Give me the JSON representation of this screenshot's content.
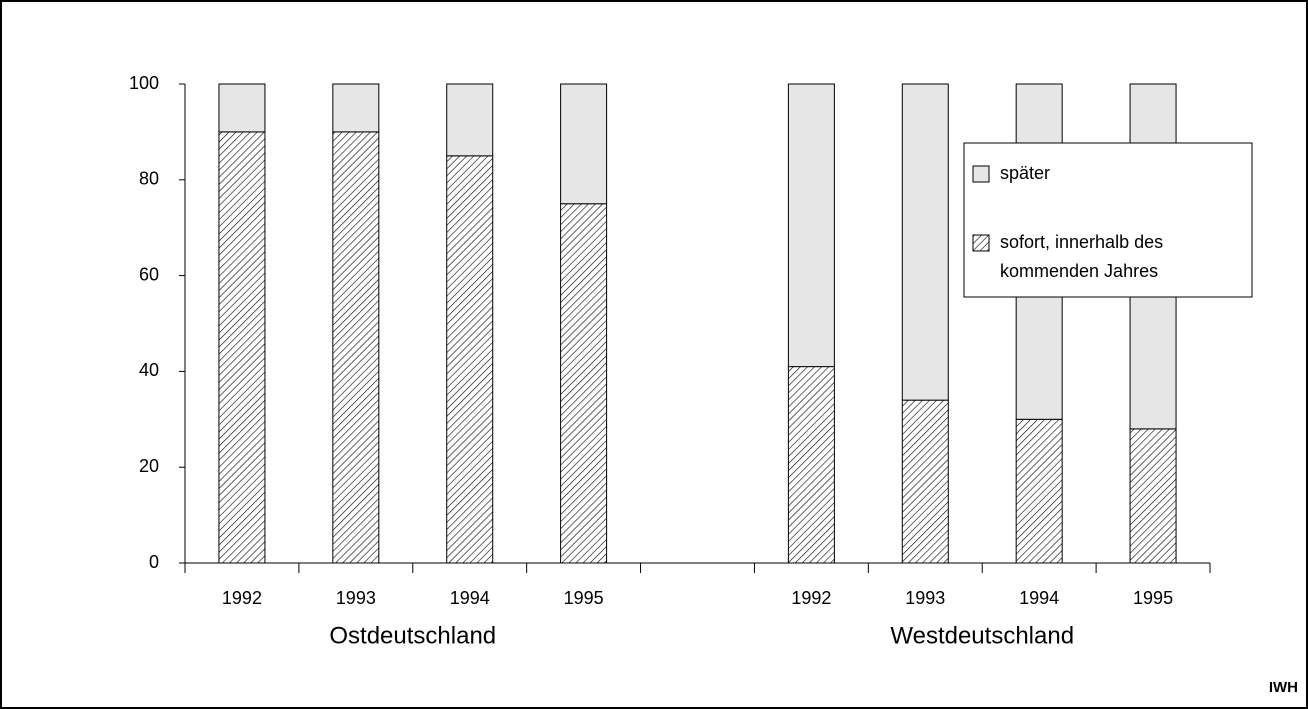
{
  "chart_data": {
    "type": "stacked-bar",
    "categories": [
      "1992",
      "1993",
      "1994",
      "1995",
      null,
      "1992",
      "1993",
      "1994",
      "1995"
    ],
    "group_labels": [
      "Ostdeutschland",
      "Westdeutschland"
    ],
    "series": [
      {
        "name": "sofort, innerhalb des kommenden Jahres",
        "color": "#000000",
        "hatch": true,
        "values": [
          90,
          90,
          85,
          75,
          null,
          41,
          34,
          30,
          28
        ]
      },
      {
        "name": "später",
        "color": "#e6e6e6",
        "hatch": false,
        "values": [
          10,
          10,
          15,
          25,
          null,
          59,
          66,
          70,
          72
        ]
      }
    ],
    "ylim": [
      0,
      100
    ],
    "yticks": [
      0,
      20,
      40,
      60,
      80,
      100
    ],
    "source": "IWH"
  }
}
